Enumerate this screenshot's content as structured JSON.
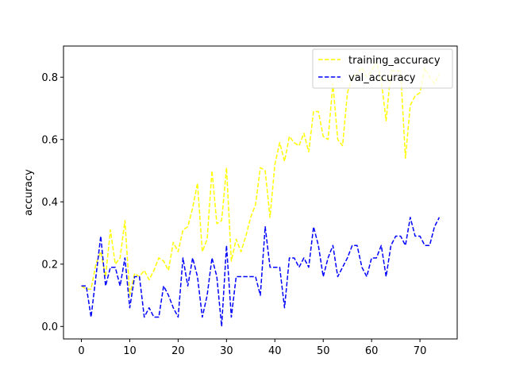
{
  "chart_data": {
    "type": "line",
    "title": "",
    "xlabel": "",
    "ylabel": "accuracy",
    "xlim": [
      -3.7,
      77.7
    ],
    "ylim": [
      -0.04,
      0.9
    ],
    "xticks": [
      0,
      10,
      20,
      30,
      40,
      50,
      60,
      70
    ],
    "yticks": [
      0.0,
      0.2,
      0.4,
      0.6,
      0.8
    ],
    "ytick_labels": [
      "0.0",
      "0.2",
      "0.4",
      "0.6",
      "0.8"
    ],
    "grid": false,
    "legend_position": "upper right",
    "series": [
      {
        "name": "training_accuracy",
        "color": "#ffff00",
        "linestyle": "dashed",
        "values": [
          0.13,
          0.12,
          0.12,
          0.2,
          0.24,
          0.16,
          0.31,
          0.2,
          0.22,
          0.34,
          0.1,
          0.17,
          0.16,
          0.18,
          0.15,
          0.18,
          0.22,
          0.21,
          0.18,
          0.27,
          0.24,
          0.31,
          0.32,
          0.38,
          0.46,
          0.24,
          0.28,
          0.5,
          0.33,
          0.34,
          0.51,
          0.21,
          0.28,
          0.24,
          0.29,
          0.35,
          0.39,
          0.51,
          0.5,
          0.35,
          0.52,
          0.59,
          0.53,
          0.61,
          0.59,
          0.58,
          0.62,
          0.56,
          0.69,
          0.69,
          0.61,
          0.6,
          0.78,
          0.6,
          0.58,
          0.75,
          0.8,
          0.81,
          0.83,
          0.8,
          0.82,
          0.85,
          0.79,
          0.66,
          0.82,
          0.82,
          0.82,
          0.54,
          0.71,
          0.74,
          0.75,
          0.83,
          0.8,
          0.78,
          0.81
        ]
      },
      {
        "name": "val_accuracy",
        "color": "#0000ff",
        "linestyle": "dashed",
        "values": [
          0.13,
          0.13,
          0.03,
          0.16,
          0.29,
          0.13,
          0.19,
          0.19,
          0.13,
          0.22,
          0.06,
          0.16,
          0.16,
          0.03,
          0.06,
          0.03,
          0.03,
          0.13,
          0.1,
          0.06,
          0.03,
          0.22,
          0.13,
          0.22,
          0.16,
          0.03,
          0.1,
          0.22,
          0.16,
          0.0,
          0.26,
          0.03,
          0.16,
          0.16,
          0.16,
          0.16,
          0.16,
          0.1,
          0.32,
          0.19,
          0.19,
          0.19,
          0.06,
          0.22,
          0.22,
          0.19,
          0.22,
          0.19,
          0.32,
          0.26,
          0.16,
          0.22,
          0.26,
          0.16,
          0.19,
          0.22,
          0.26,
          0.26,
          0.19,
          0.16,
          0.22,
          0.22,
          0.26,
          0.16,
          0.26,
          0.29,
          0.29,
          0.26,
          0.35,
          0.29,
          0.29,
          0.26,
          0.26,
          0.32,
          0.35
        ]
      }
    ]
  }
}
